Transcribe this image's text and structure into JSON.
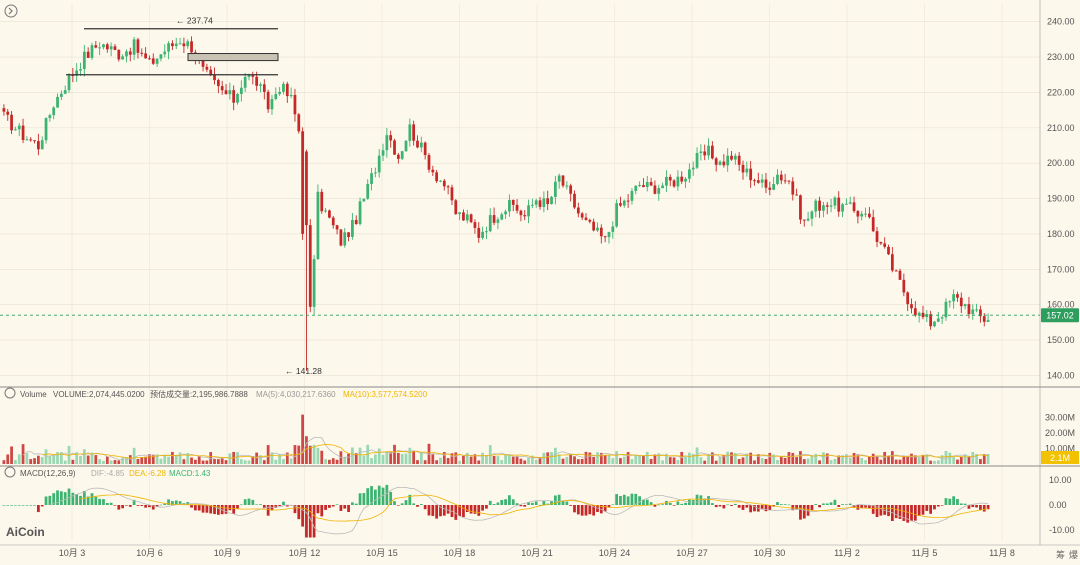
{
  "chart_data": {
    "type": "candlestick",
    "title": "",
    "price_axis": {
      "ticks": [
        "240.00",
        "230.00",
        "220.00",
        "210.00",
        "200.00",
        "190.00",
        "180.00",
        "170.00",
        "160.00",
        "150.00",
        "140.00"
      ],
      "ylim": [
        137,
        245
      ],
      "last_price": "157.02",
      "high_marker": "237.74",
      "low_marker": "141.28"
    },
    "x_labels": [
      "10月 3",
      "10月 6",
      "10月 9",
      "10月 12",
      "10月 15",
      "10月 18",
      "10月 21",
      "10月 24",
      "10月 27",
      "10月 30",
      "11月 2",
      "11月 5",
      "11月 8"
    ],
    "price_path": [
      [
        0,
        213
      ],
      [
        5,
        208
      ],
      [
        9,
        205
      ],
      [
        13,
        217
      ],
      [
        17,
        224
      ],
      [
        21,
        230
      ],
      [
        25,
        234
      ],
      [
        30,
        231
      ],
      [
        34,
        233
      ],
      [
        38,
        228
      ],
      [
        42,
        232
      ],
      [
        46,
        235
      ],
      [
        49,
        233
      ],
      [
        52,
        226
      ],
      [
        56,
        221
      ],
      [
        60,
        218
      ],
      [
        63,
        225
      ],
      [
        66,
        223
      ],
      [
        69,
        216
      ],
      [
        72,
        222
      ],
      [
        75,
        218
      ],
      [
        78,
        205
      ],
      [
        80,
        158
      ],
      [
        82,
        190
      ],
      [
        85,
        184
      ],
      [
        88,
        178
      ],
      [
        91,
        182
      ],
      [
        94,
        190
      ],
      [
        97,
        199
      ],
      [
        100,
        209
      ],
      [
        103,
        202
      ],
      [
        106,
        210
      ],
      [
        109,
        204
      ],
      [
        112,
        198
      ],
      [
        115,
        194
      ],
      [
        118,
        186
      ],
      [
        121,
        184
      ],
      [
        124,
        180
      ],
      [
        127,
        184
      ],
      [
        130,
        187
      ],
      [
        133,
        188
      ],
      [
        136,
        185
      ],
      [
        139,
        190
      ],
      [
        142,
        188
      ],
      [
        145,
        196
      ],
      [
        148,
        190
      ],
      [
        151,
        184
      ],
      [
        154,
        181
      ],
      [
        157,
        178
      ],
      [
        160,
        187
      ],
      [
        163,
        190
      ],
      [
        166,
        194
      ],
      [
        169,
        193
      ],
      [
        172,
        194
      ],
      [
        175,
        195
      ],
      [
        178,
        197
      ],
      [
        181,
        201
      ],
      [
        184,
        203
      ],
      [
        187,
        200
      ],
      [
        190,
        202
      ],
      [
        193,
        198
      ],
      [
        196,
        196
      ],
      [
        199,
        193
      ],
      [
        202,
        197
      ],
      [
        205,
        195
      ],
      [
        207,
        189
      ],
      [
        209,
        183
      ],
      [
        212,
        188
      ],
      [
        215,
        189
      ],
      [
        218,
        188
      ],
      [
        221,
        187
      ],
      [
        223,
        186
      ],
      [
        225,
        187
      ],
      [
        227,
        181
      ],
      [
        230,
        175
      ],
      [
        233,
        168
      ],
      [
        236,
        162
      ],
      [
        239,
        157
      ],
      [
        242,
        155
      ],
      [
        245,
        158
      ],
      [
        248,
        162
      ],
      [
        251,
        160
      ],
      [
        254,
        157
      ],
      [
        256,
        156
      ],
      [
        258,
        157
      ]
    ],
    "fall_after_index": 77,
    "ranges": [
      {
        "from": 0,
        "to": 77,
        "close": 238,
        "open": 230,
        "label": "box-high"
      },
      {
        "from": 0,
        "to": 77,
        "close": 226,
        "open": 225,
        "label": "box-low"
      }
    ],
    "volume": {
      "label": "Volume",
      "value": "VOLUME:2,074,445.0200",
      "estimate": "预估成交量:2,195,986.7888",
      "ma5": "MA(5):4,030,217.6360",
      "ma10": "MA(10):3,577,574.5200",
      "ticks": [
        "30.00M",
        "20.00M",
        "10.00M"
      ],
      "last": "2.1M",
      "ylim": [
        0,
        35000000
      ]
    },
    "macd": {
      "label": "MACD(12,26,9)",
      "dif": "DIF:-4.85",
      "dea": "DEA:-6.28",
      "macd": "MACD:1.43",
      "ticks": [
        "10.00",
        "0.00",
        "-10.00"
      ],
      "ylim": [
        -14,
        14
      ]
    },
    "colors": {
      "up": "#3cb371",
      "down": "#c62828",
      "ma5": "#f0b400",
      "ma10": "#c9a7d8",
      "last_tag": "#2e9e5e",
      "vol_tag": "#f2c200",
      "grid": "#e8e2d2",
      "axis_text": "#555555"
    }
  },
  "footer": {
    "logo": "AiCoin",
    "right_a": "筹",
    "right_b": "爆"
  }
}
